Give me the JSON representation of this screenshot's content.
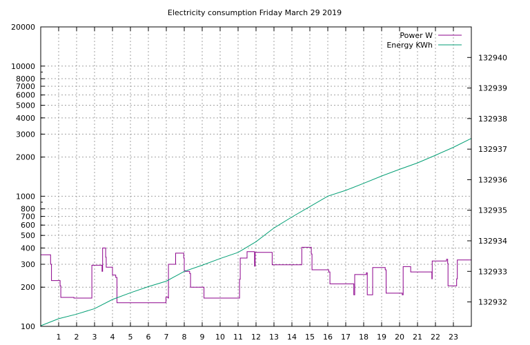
{
  "chart_data": {
    "type": "line",
    "title": "Electricity consumption Friday March 29 2019",
    "xlabel": "",
    "ylabel": "",
    "y2label": "",
    "grid": true,
    "legend_position": "top-right",
    "x_range": [
      0,
      24
    ],
    "x_ticks": [
      "1",
      "2",
      "3",
      "4",
      "5",
      "6",
      "7",
      "8",
      "9",
      "10",
      "11",
      "12",
      "13",
      "14",
      "15",
      "16",
      "17",
      "18",
      "19",
      "20",
      "21",
      "22",
      "23"
    ],
    "y_scale": "log",
    "y_range": [
      100,
      20000
    ],
    "y_ticks": [
      100,
      200,
      300,
      400,
      500,
      600,
      700,
      800,
      1000,
      2000,
      3000,
      4000,
      5000,
      6000,
      7000,
      8000,
      10000,
      20000
    ],
    "y2_range": [
      132931.2,
      132941.0
    ],
    "y2_ticks": [
      132932,
      132933,
      132934,
      132935,
      132936,
      132937,
      132938,
      132939,
      132940
    ],
    "series": [
      {
        "name": "Power W",
        "color": "#8b008b",
        "axis": "y",
        "points": [
          [
            0.0,
            355
          ],
          [
            0.52,
            355
          ],
          [
            0.55,
            300
          ],
          [
            0.6,
            225
          ],
          [
            1.0,
            225
          ],
          [
            1.08,
            205
          ],
          [
            1.12,
            167
          ],
          [
            1.8,
            167
          ],
          [
            1.85,
            165
          ],
          [
            2.8,
            165
          ],
          [
            2.85,
            295
          ],
          [
            3.38,
            295
          ],
          [
            3.42,
            265
          ],
          [
            3.45,
            400
          ],
          [
            3.6,
            400
          ],
          [
            3.62,
            340
          ],
          [
            3.65,
            285
          ],
          [
            3.95,
            285
          ],
          [
            4.0,
            248
          ],
          [
            4.15,
            248
          ],
          [
            4.18,
            238
          ],
          [
            4.25,
            152
          ],
          [
            6.95,
            152
          ],
          [
            6.98,
            168
          ],
          [
            7.1,
            165
          ],
          [
            7.12,
            300
          ],
          [
            7.48,
            300
          ],
          [
            7.52,
            365
          ],
          [
            7.95,
            365
          ],
          [
            7.97,
            335
          ],
          [
            8.0,
            268
          ],
          [
            8.05,
            265
          ],
          [
            8.15,
            265
          ],
          [
            8.3,
            255
          ],
          [
            8.35,
            200
          ],
          [
            9.05,
            200
          ],
          [
            9.1,
            165
          ],
          [
            11.05,
            165
          ],
          [
            11.08,
            230
          ],
          [
            11.12,
            335
          ],
          [
            11.45,
            335
          ],
          [
            11.5,
            375
          ],
          [
            11.88,
            375
          ],
          [
            11.92,
            290
          ],
          [
            11.95,
            370
          ],
          [
            12.85,
            370
          ],
          [
            12.9,
            297
          ],
          [
            14.5,
            297
          ],
          [
            14.55,
            405
          ],
          [
            15.05,
            405
          ],
          [
            15.08,
            360
          ],
          [
            15.12,
            272
          ],
          [
            16.0,
            272
          ],
          [
            16.05,
            262
          ],
          [
            16.12,
            212
          ],
          [
            17.42,
            212
          ],
          [
            17.45,
            175
          ],
          [
            17.5,
            250
          ],
          [
            18.12,
            250
          ],
          [
            18.15,
            258
          ],
          [
            18.2,
            175
          ],
          [
            18.48,
            175
          ],
          [
            18.5,
            283
          ],
          [
            19.15,
            283
          ],
          [
            19.2,
            272
          ],
          [
            19.25,
            180
          ],
          [
            20.12,
            180
          ],
          [
            20.15,
            175
          ],
          [
            20.2,
            288
          ],
          [
            20.58,
            288
          ],
          [
            20.62,
            262
          ],
          [
            21.75,
            262
          ],
          [
            21.8,
            232
          ],
          [
            21.82,
            318
          ],
          [
            22.6,
            318
          ],
          [
            22.62,
            328
          ],
          [
            22.68,
            305
          ],
          [
            22.7,
            205
          ],
          [
            23.15,
            205
          ],
          [
            23.18,
            232
          ],
          [
            23.22,
            324
          ],
          [
            24.0,
            324
          ]
        ]
      },
      {
        "name": "Energy KWh",
        "color": "#009e73",
        "axis": "y2",
        "points": [
          [
            0.0,
            132931.22
          ],
          [
            1.0,
            132931.45
          ],
          [
            2.0,
            132931.6
          ],
          [
            3.0,
            132931.78
          ],
          [
            4.0,
            132932.08
          ],
          [
            5.0,
            132932.3
          ],
          [
            6.0,
            132932.5
          ],
          [
            7.0,
            132932.68
          ],
          [
            8.0,
            132933.0
          ],
          [
            9.0,
            132933.2
          ],
          [
            10.0,
            132933.42
          ],
          [
            11.0,
            132933.62
          ],
          [
            12.0,
            132933.97
          ],
          [
            13.0,
            132934.42
          ],
          [
            14.0,
            132934.78
          ],
          [
            15.0,
            132935.12
          ],
          [
            16.0,
            132935.46
          ],
          [
            17.0,
            132935.65
          ],
          [
            18.0,
            132935.88
          ],
          [
            19.0,
            132936.12
          ],
          [
            20.0,
            132936.34
          ],
          [
            21.0,
            132936.55
          ],
          [
            22.0,
            132936.8
          ],
          [
            23.0,
            132937.06
          ],
          [
            24.0,
            132937.35
          ]
        ]
      }
    ]
  }
}
